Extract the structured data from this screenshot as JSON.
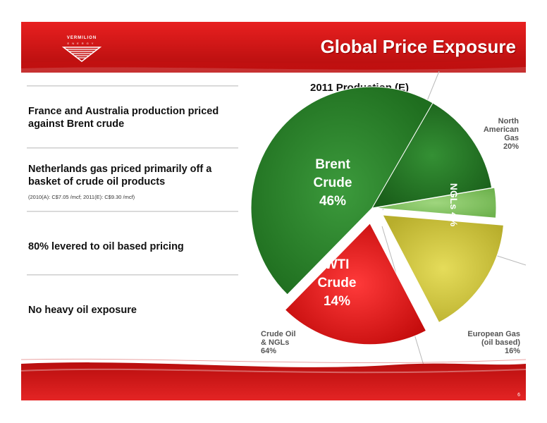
{
  "header": {
    "title": "Global Price Exposure",
    "logo_name": "VERMILION",
    "logo_sub": "ENERGY"
  },
  "bullets": [
    "France and Australia production priced against Brent crude",
    "Netherlands gas priced primarily off a basket of crude oil products",
    "80% levered to oil based pricing",
    "No heavy oil exposure"
  ],
  "note": "(2010(A): C$7.05 /mcf;  2011(E): C$9.30 /mcf)",
  "footer": {
    "page": "6"
  },
  "colors": {
    "red_brand": "#d21414",
    "brent": "#2f8a2f",
    "wti": "#2e7d2e",
    "ngls": "#8dc96d",
    "european_gas": "#d8d048",
    "north_american_gas": "#e81c1c"
  },
  "chart_data": {
    "type": "pie",
    "title": "2011 Production (E)",
    "slices": [
      {
        "name": "Brent Crude",
        "label_line1": "Brent",
        "label_line2": "Crude",
        "value": 46,
        "value_label": "46%"
      },
      {
        "name": "WTI Crude",
        "label_line1": "WTI",
        "label_line2": "Crude",
        "value": 14,
        "value_label": "14%"
      },
      {
        "name": "NGLs",
        "value": 4,
        "value_label": "NGLs 4%"
      },
      {
        "name": "European Gas (oil based)",
        "value": 16,
        "value_label": "16%"
      },
      {
        "name": "North American Gas",
        "value": 20,
        "value_label": "20%"
      }
    ],
    "outer_labels": {
      "crude": [
        "Crude Oil",
        "& NGLs",
        "64%"
      ],
      "european": [
        "European Gas",
        "(oil based)",
        "16%"
      ],
      "north_american": [
        "North",
        "American",
        "Gas",
        "20%"
      ]
    }
  }
}
